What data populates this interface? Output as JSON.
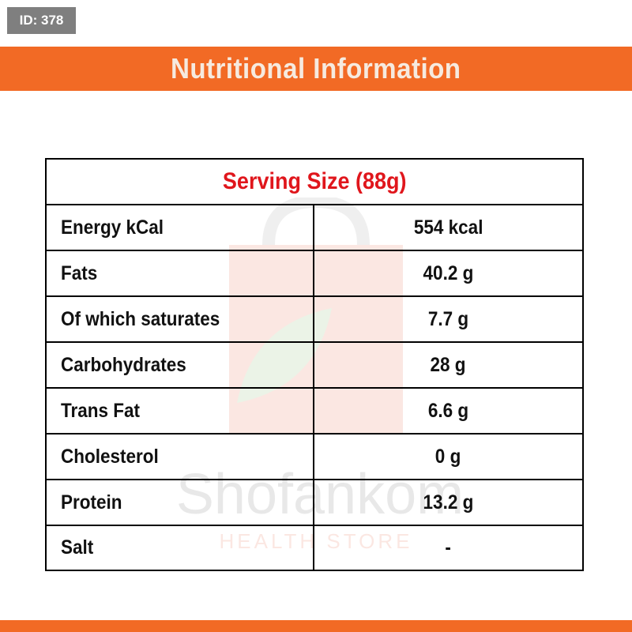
{
  "badge": {
    "id_label": "ID: 378"
  },
  "header": {
    "title": "Nutritional Information"
  },
  "table": {
    "serving_size": "Serving Size (88g)",
    "rows": [
      {
        "label": "Energy kCal",
        "value": "554 kcal"
      },
      {
        "label": "Fats",
        "value": "40.2 g"
      },
      {
        "label": "Of which saturates",
        "value": "7.7 g"
      },
      {
        "label": "Carbohydrates",
        "value": "28 g"
      },
      {
        "label": "Trans Fat",
        "value": "6.6 g"
      },
      {
        "label": "Cholesterol",
        "value": "0 g"
      },
      {
        "label": "Protein",
        "value": "13.2 g"
      },
      {
        "label": "Salt",
        "value": "-"
      }
    ]
  },
  "watermark": {
    "brand": "Shofankom",
    "tagline": "HEALTH STORE"
  },
  "colors": {
    "accent": "#f26a25",
    "serving_red": "#e0161c"
  }
}
